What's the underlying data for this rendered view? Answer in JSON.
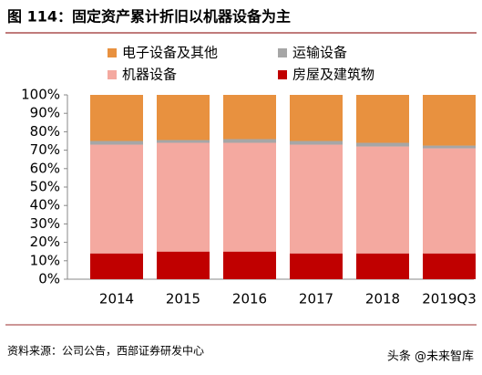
{
  "chart_data": {
    "type": "stacked_bar",
    "title": "图 114：固定资产累计折旧以机器设备为主",
    "categories": [
      "2014",
      "2015",
      "2016",
      "2017",
      "2018",
      "2019Q3"
    ],
    "series": [
      {
        "name": "电子设备及其他",
        "color": "#E8913F",
        "values": [
          25,
          24.5,
          24,
          25,
          26,
          27.5
        ]
      },
      {
        "name": "运输设备",
        "color": "#A6A6A6",
        "values": [
          2,
          1.5,
          2,
          2,
          2,
          1.5
        ]
      },
      {
        "name": "机器设备",
        "color": "#F4A9A0",
        "values": [
          59,
          59,
          59,
          59,
          58,
          57
        ]
      },
      {
        "name": "房屋及建筑物",
        "color": "#C00000",
        "values": [
          14,
          15,
          15,
          14,
          14,
          14
        ]
      }
    ],
    "ylim": [
      0,
      100
    ],
    "yticks": [
      {
        "value": 0,
        "label": "0%"
      },
      {
        "value": 10,
        "label": "10%"
      },
      {
        "value": 20,
        "label": "20%"
      },
      {
        "value": 30,
        "label": "30%"
      },
      {
        "value": 40,
        "label": "40%"
      },
      {
        "value": 50,
        "label": "50%"
      },
      {
        "value": 60,
        "label": "60%"
      },
      {
        "value": 70,
        "label": "70%"
      },
      {
        "value": 80,
        "label": "80%"
      },
      {
        "value": 90,
        "label": "90%"
      },
      {
        "value": 100,
        "label": "100%"
      }
    ]
  },
  "source": "资料来源：公司公告，西部证券研发中心",
  "watermark": "头条 @未来智库"
}
